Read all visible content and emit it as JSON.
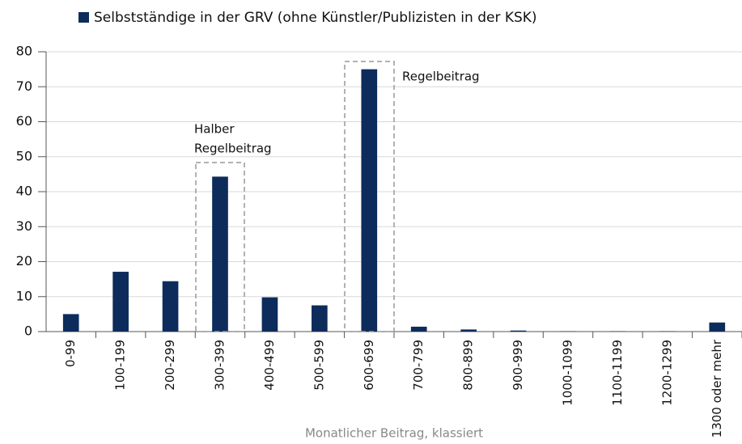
{
  "chart_data": {
    "type": "bar",
    "legend": "Selbstständige in der GRV (ohne Künstler/Publizisten in der KSK)",
    "xlabel": "Monatlicher Beitrag, klassiert",
    "categories": [
      "0-99",
      "100-199",
      "200-299",
      "300-399",
      "400-499",
      "500-599",
      "600-699",
      "700-799",
      "800-899",
      "900-999",
      "1000-1099",
      "1100-1199",
      "1200-1299",
      "1300 oder mehr"
    ],
    "values": [
      5,
      17.1,
      14.4,
      44.3,
      9.8,
      7.5,
      75,
      1.4,
      0.6,
      0.3,
      0.1,
      0.1,
      0.1,
      2.6
    ],
    "color": "#0d2c5c",
    "ylim": [
      0,
      80
    ],
    "yticks": [
      0,
      10,
      20,
      30,
      40,
      50,
      60,
      70,
      80
    ],
    "grid": true,
    "annotations": [
      {
        "lines": [
          "Halber",
          "Regelbeitrag"
        ]
      },
      {
        "lines": [
          "Regelbeitrag"
        ]
      }
    ]
  }
}
